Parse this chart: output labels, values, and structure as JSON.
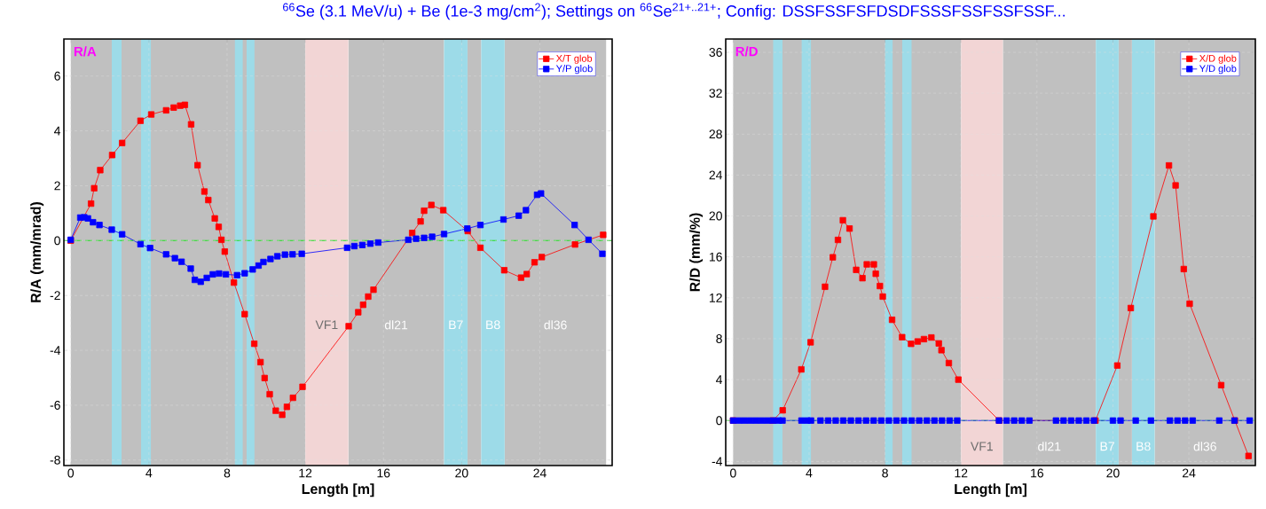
{
  "chart_data": [
    {
      "type": "line",
      "title": "$^{66}$Se (3.1 MeV/u) + Be (1e-3 mg/cm$^{2}$);  Settings on $^{66}$Se$^{21+..21+}$;  Config: DSSFSSFSFDSDFSSSFSSFSSFSSF...",
      "xlabel": "Length [m]",
      "ylabel": "R/A (mm/mrad)",
      "annotations": [
        "R/A"
      ],
      "xlim": [
        -0.35,
        27.7
      ],
      "ylim": [
        -8.2,
        7.35
      ],
      "xticks": [
        0,
        4,
        8,
        12,
        16,
        20,
        24
      ],
      "yticks": [
        -8,
        -6,
        -4,
        -2,
        0,
        2,
        4,
        6
      ],
      "grid": true,
      "legend": "top right",
      "marker": "square",
      "line_style": "solid",
      "bands": [
        {
          "axis": "x",
          "from": 0,
          "to": 12.0,
          "color": "#c0c0c0"
        },
        {
          "axis": "x",
          "from": 14.2,
          "to": 19.1,
          "label": "dl21",
          "color": "#c0c0c0"
        },
        {
          "axis": "x",
          "from": 20.3,
          "to": 21.0,
          "color": "#c0c0c0"
        },
        {
          "axis": "x",
          "from": 22.2,
          "to": 27.4,
          "label": "dl36",
          "color": "#c0c0c0"
        },
        {
          "axis": "x",
          "from": 2.1,
          "to": 2.6,
          "color": "#9ddbe8"
        },
        {
          "axis": "x",
          "from": 3.6,
          "to": 4.1,
          "color": "#9ddbe8"
        },
        {
          "axis": "x",
          "from": 8.4,
          "to": 8.8,
          "color": "#9ddbe8"
        },
        {
          "axis": "x",
          "from": 9.0,
          "to": 9.4,
          "color": "#9ddbe8"
        },
        {
          "axis": "x",
          "from": 12.0,
          "to": 14.2,
          "label": "VF1",
          "color": "#f2d5d5"
        },
        {
          "axis": "x",
          "from": 19.1,
          "to": 20.3,
          "label": "B7",
          "color": "#9ddbe8"
        },
        {
          "axis": "x",
          "from": 21.0,
          "to": 22.2,
          "label": "B8",
          "color": "#9ddbe8"
        }
      ],
      "ref_lines": [
        {
          "axis": "y",
          "value": 0,
          "color": "#22dd22",
          "line_style": "dashed"
        }
      ],
      "series": [
        {
          "name": "X/T  glob",
          "color": "#ff0000",
          "x": [
            0,
            1.04,
            1.2,
            1.51,
            2.12,
            2.63,
            3.57,
            4.12,
            4.88,
            5.27,
            5.6,
            5.84,
            6.16,
            6.49,
            6.84,
            7.04,
            7.37,
            7.57,
            7.71,
            7.88,
            8.35,
            8.9,
            9.39,
            9.71,
            9.92,
            10.18,
            10.49,
            10.82,
            11.06,
            11.37,
            11.86,
            14.22,
            14.71,
            14.96,
            15.22,
            15.49,
            17.47,
            17.9,
            18.08,
            18.45,
            19.06,
            20.31,
            20.96,
            22.18,
            23.04,
            23.33,
            23.73,
            24.1,
            25.8,
            27.24
          ],
          "values": [
            0,
            1.35,
            1.91,
            2.57,
            3.12,
            3.56,
            4.37,
            4.6,
            4.75,
            4.85,
            4.92,
            4.95,
            4.24,
            2.75,
            1.79,
            1.48,
            0.81,
            0.5,
            0.03,
            -0.4,
            -1.53,
            -2.68,
            -3.76,
            -4.43,
            -5.01,
            -5.6,
            -6.2,
            -6.35,
            -6.06,
            -5.73,
            -5.33,
            -3.12,
            -2.61,
            -2.34,
            -2.04,
            -1.79,
            0.28,
            0.7,
            1.09,
            1.3,
            1.11,
            0.35,
            -0.26,
            -1.08,
            -1.35,
            -1.22,
            -0.79,
            -0.6,
            -0.14,
            0.21
          ]
        },
        {
          "name": "Y/P  glob",
          "color": "#0000ff",
          "x": [
            0,
            0.49,
            0.69,
            0.88,
            1.14,
            1.47,
            2.1,
            2.63,
            3.57,
            4.06,
            4.88,
            5.33,
            5.67,
            6.14,
            6.35,
            6.65,
            6.96,
            7.27,
            7.59,
            7.94,
            8.51,
            8.9,
            9.31,
            9.61,
            9.86,
            10.22,
            10.57,
            10.96,
            11.35,
            11.82,
            14.14,
            14.51,
            14.92,
            15.33,
            15.73,
            17.27,
            17.67,
            18.08,
            18.49,
            19.1,
            20.29,
            20.96,
            22.14,
            22.92,
            23.29,
            23.86,
            24.06,
            25.78,
            26.49,
            27.2
          ],
          "values": [
            0.03,
            0.84,
            0.85,
            0.81,
            0.67,
            0.57,
            0.4,
            0.23,
            -0.13,
            -0.27,
            -0.5,
            -0.64,
            -0.77,
            -1.02,
            -1.43,
            -1.5,
            -1.36,
            -1.23,
            -1.2,
            -1.23,
            -1.26,
            -1.19,
            -1.05,
            -0.91,
            -0.78,
            -0.67,
            -0.57,
            -0.51,
            -0.5,
            -0.48,
            -0.26,
            -0.2,
            -0.16,
            -0.11,
            -0.07,
            0.03,
            0.07,
            0.1,
            0.14,
            0.24,
            0.44,
            0.57,
            0.77,
            0.91,
            1.11,
            1.67,
            1.72,
            0.57,
            0.03,
            -0.48
          ]
        }
      ]
    },
    {
      "type": "line",
      "xlabel": "Length [m]",
      "ylabel": "R/D (mm/%)",
      "annotations": [
        "R/D"
      ],
      "xlim": [
        -0.39,
        27.5
      ],
      "ylim": [
        -4.4,
        37.3
      ],
      "xticks": [
        0,
        4,
        8,
        12,
        16,
        20,
        24
      ],
      "yticks": [
        -4,
        0,
        4,
        8,
        12,
        16,
        20,
        24,
        28,
        32,
        36
      ],
      "grid": true,
      "legend": "top right",
      "marker": "square",
      "line_style": "solid",
      "bands": [
        {
          "axis": "x",
          "from": 0,
          "to": 12.0,
          "color": "#c0c0c0"
        },
        {
          "axis": "x",
          "from": 14.2,
          "to": 19.1,
          "label": "dl21",
          "color": "#c0c0c0"
        },
        {
          "axis": "x",
          "from": 20.3,
          "to": 21.0,
          "color": "#c0c0c0"
        },
        {
          "axis": "x",
          "from": 22.2,
          "to": 27.5,
          "label": "dl36",
          "color": "#c0c0c0"
        },
        {
          "axis": "x",
          "from": 2.1,
          "to": 2.6,
          "color": "#9ddbe8"
        },
        {
          "axis": "x",
          "from": 3.6,
          "to": 4.1,
          "color": "#9ddbe8"
        },
        {
          "axis": "x",
          "from": 8.0,
          "to": 8.4,
          "color": "#9ddbe8"
        },
        {
          "axis": "x",
          "from": 8.9,
          "to": 9.4,
          "color": "#9ddbe8"
        },
        {
          "axis": "x",
          "from": 12.0,
          "to": 14.2,
          "label": "VF1",
          "color": "#f2d5d5"
        },
        {
          "axis": "x",
          "from": 19.1,
          "to": 20.3,
          "label": "B7",
          "color": "#9ddbe8"
        },
        {
          "axis": "x",
          "from": 21.0,
          "to": 22.2,
          "label": "B8",
          "color": "#9ddbe8"
        }
      ],
      "ref_lines": [
        {
          "axis": "y",
          "value": 0,
          "color": "#22dd22",
          "line_style": "dashed"
        }
      ],
      "series": [
        {
          "name": "X/D  glob",
          "color": "#ff0000",
          "x": [
            0,
            2.1,
            2.61,
            3.59,
            4.08,
            4.84,
            5.25,
            5.52,
            5.78,
            6.13,
            6.48,
            6.81,
            7.04,
            7.41,
            7.51,
            7.73,
            7.88,
            8.37,
            8.9,
            9.37,
            9.72,
            10.05,
            10.44,
            10.83,
            10.97,
            11.36,
            11.86,
            14.01,
            19.08,
            20.23,
            20.94,
            22.13,
            22.95,
            23.3,
            23.73,
            24.04,
            25.7,
            26.42,
            27.14
          ],
          "values": [
            0,
            0,
            1.0,
            5.0,
            7.65,
            13.08,
            15.96,
            17.66,
            19.58,
            18.77,
            14.73,
            13.92,
            15.27,
            15.27,
            14.35,
            13.15,
            12.12,
            9.85,
            8.15,
            7.5,
            7.73,
            7.96,
            8.12,
            7.54,
            6.88,
            5.62,
            4.0,
            0,
            0,
            5.38,
            11.0,
            19.96,
            24.94,
            22.99,
            14.81,
            11.42,
            3.46,
            0,
            -3.46
          ]
        },
        {
          "name": "Y/D  glob",
          "color": "#0000ff",
          "x": [
            0,
            0.3,
            0.6,
            0.9,
            1.2,
            1.5,
            1.8,
            2.1,
            2.4,
            2.6,
            3.6,
            3.9,
            4.1,
            4.6,
            5.0,
            5.4,
            5.8,
            6.2,
            6.6,
            7.0,
            7.4,
            7.8,
            8.2,
            8.6,
            9.0,
            9.4,
            9.8,
            10.2,
            10.6,
            11.0,
            11.4,
            11.8,
            14.0,
            14.4,
            14.8,
            15.2,
            15.6,
            17.0,
            17.4,
            17.8,
            18.2,
            18.6,
            19.0,
            20.0,
            20.4,
            21.2,
            22.0,
            23.0,
            23.4,
            23.8,
            24.2,
            25.6,
            26.4,
            27.2
          ],
          "values": [
            0,
            0,
            0,
            0,
            0,
            0,
            0,
            0,
            0,
            0,
            0,
            0,
            0,
            0,
            0,
            0,
            0,
            0,
            0,
            0,
            0,
            0,
            0,
            0,
            0,
            0,
            0,
            0,
            0,
            0,
            0,
            0,
            0,
            0,
            0,
            0,
            0,
            0,
            0,
            0,
            0,
            0,
            0,
            0,
            0,
            0,
            0,
            0,
            0,
            0,
            0,
            0,
            0,
            0
          ]
        }
      ]
    }
  ]
}
